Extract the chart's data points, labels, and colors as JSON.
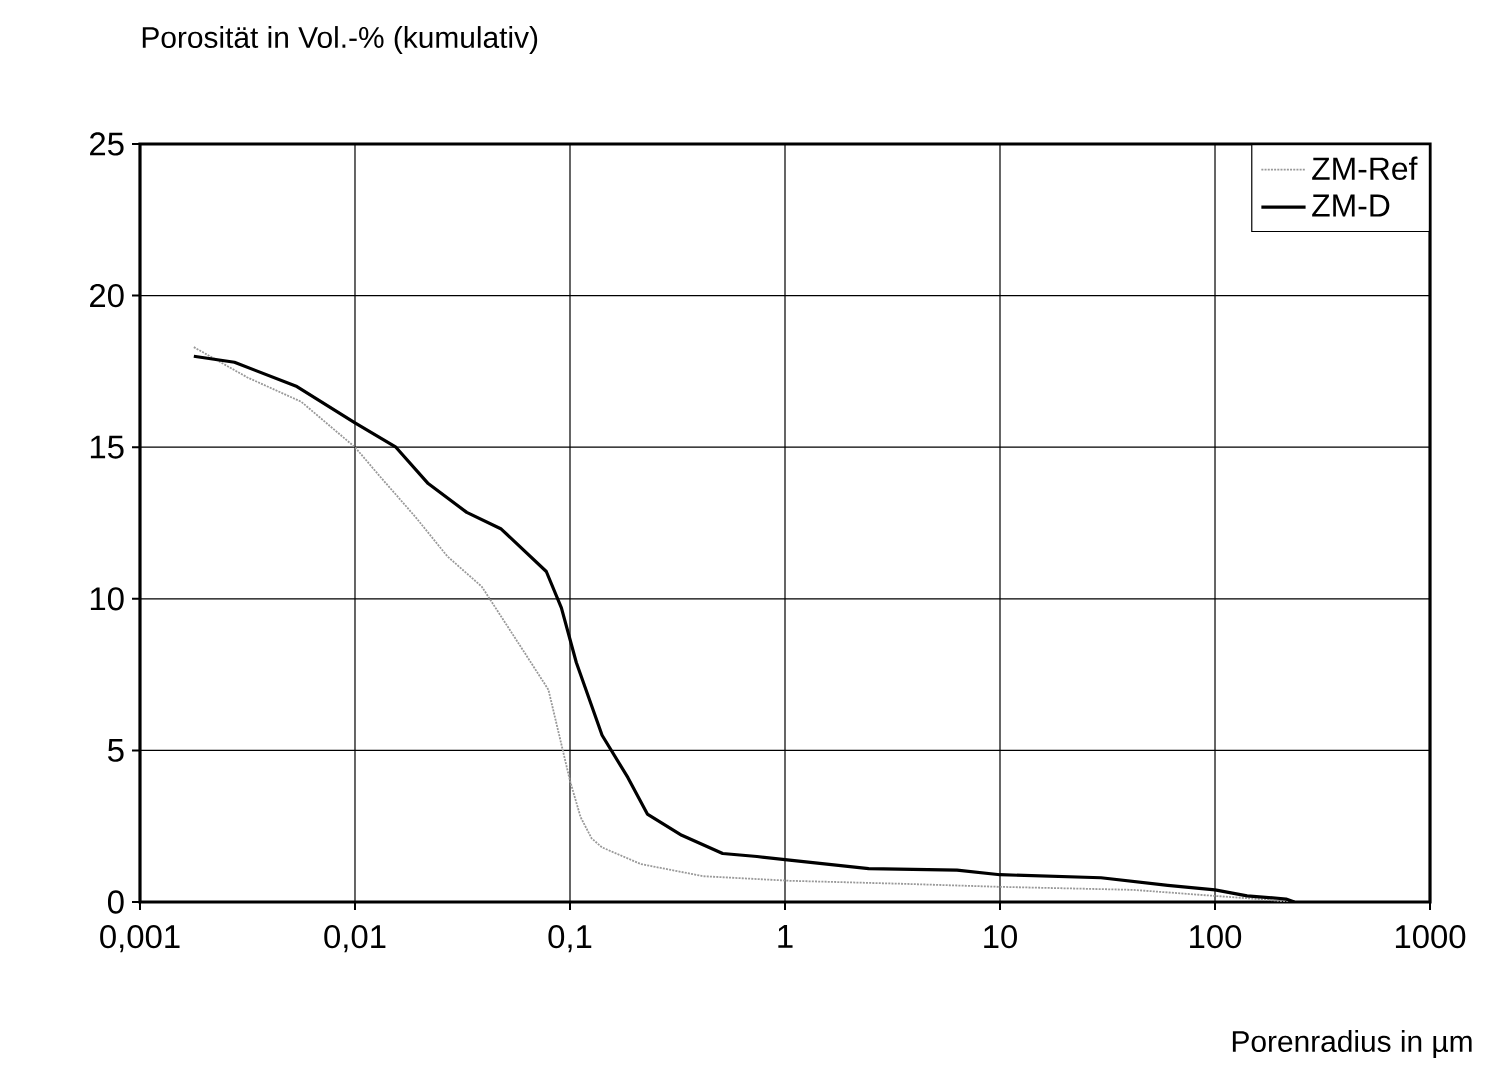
{
  "chart_data": {
    "type": "line",
    "ylabel": "Porosität in Vol.-%  (kumulativ)",
    "xlabel": "Porenradius in µm",
    "log": "x",
    "grid": true,
    "legend": "top right",
    "xlim": [
      0.001,
      1000
    ],
    "ylim": [
      0,
      25
    ],
    "xticks": [
      {
        "value": 0.001,
        "label": "0,001"
      },
      {
        "value": 0.01,
        "label": "0,01"
      },
      {
        "value": 0.1,
        "label": "0,1"
      },
      1,
      10,
      100,
      1000
    ],
    "yticks": [
      0,
      5,
      10,
      15,
      20,
      25
    ],
    "series": [
      {
        "name": "ZM-Ref",
        "color": "#999999",
        "line_style": "dotted",
        "x": [
          0.00178,
          0.00316,
          0.00562,
          0.01,
          0.0132,
          0.0191,
          0.0269,
          0.0389,
          0.0631,
          0.0794,
          0.1,
          0.112,
          0.126,
          0.141,
          0.214,
          0.417,
          1.05,
          3.55,
          10,
          41.7,
          100,
          158,
          224
        ],
        "values": [
          18.3,
          17.3,
          16.5,
          15.0,
          14.0,
          12.7,
          11.4,
          10.4,
          8.1,
          7.0,
          4.0,
          2.8,
          2.1,
          1.8,
          1.25,
          0.85,
          0.7,
          0.6,
          0.5,
          0.4,
          0.2,
          0.1,
          0
        ]
      },
      {
        "name": "ZM-D",
        "color": "#000000",
        "line_style": "solid",
        "x": [
          0.00178,
          0.00275,
          0.00537,
          0.01,
          0.0155,
          0.0219,
          0.0331,
          0.0479,
          0.0776,
          0.0912,
          0.107,
          0.141,
          0.186,
          0.229,
          0.331,
          0.513,
          0.741,
          1.05,
          2.45,
          6.31,
          10,
          29.5,
          60.3,
          100,
          141,
          214,
          234
        ],
        "values": [
          18.0,
          17.8,
          17.0,
          15.8,
          15.0,
          13.8,
          12.85,
          12.3,
          10.9,
          9.7,
          7.9,
          5.5,
          4.1,
          2.9,
          2.2,
          1.6,
          1.5,
          1.38,
          1.1,
          1.05,
          0.9,
          0.8,
          0.55,
          0.4,
          0.2,
          0.1,
          0
        ]
      }
    ]
  }
}
